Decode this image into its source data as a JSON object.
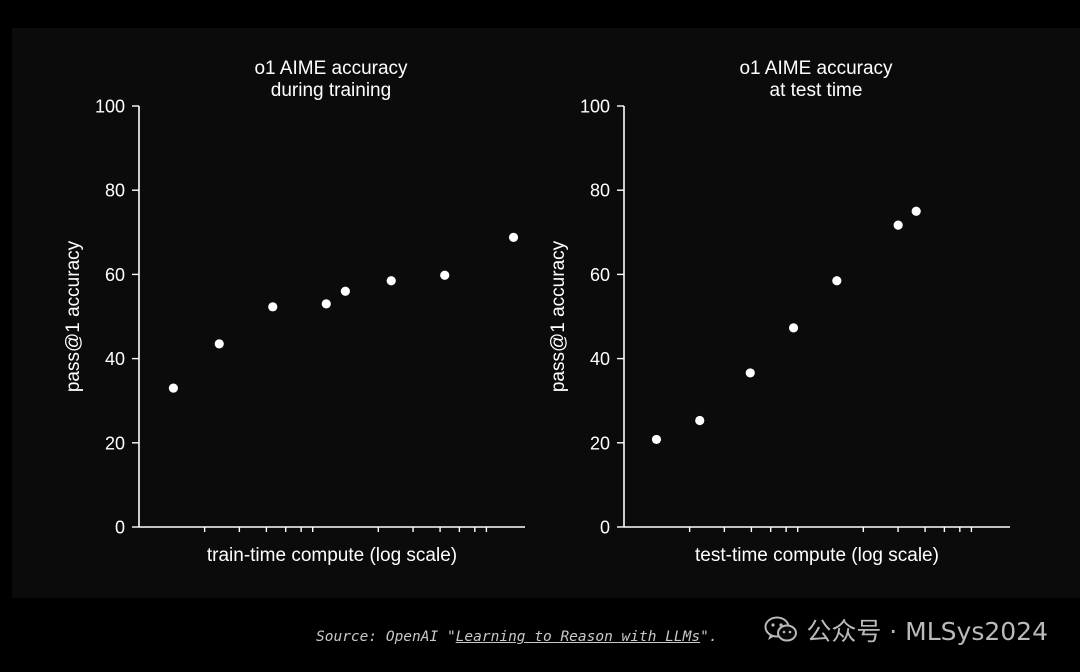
{
  "chart_data": [
    {
      "type": "scatter",
      "title_lines": [
        "o1 AIME accuracy",
        "during training"
      ],
      "xlabel": "train-time compute (log scale)",
      "ylabel": "pass@1 accuracy",
      "x_scale": "log",
      "x_tick_labels": false,
      "ylim": [
        0,
        100
      ],
      "yticks": [
        0,
        20,
        40,
        60,
        80,
        100
      ],
      "grid": false,
      "legend": "none",
      "points": [
        {
          "x": 1.0,
          "y": 33
        },
        {
          "x": 1.6,
          "y": 43.5
        },
        {
          "x": 2.3,
          "y": 52.3
        },
        {
          "x": 3.0,
          "y": 53
        },
        {
          "x": 3.25,
          "y": 56
        },
        {
          "x": 3.85,
          "y": 58.5
        },
        {
          "x": 4.55,
          "y": 59.8
        },
        {
          "x": 5.45,
          "y": 68.8
        }
      ]
    },
    {
      "type": "scatter",
      "title_lines": [
        "o1 AIME accuracy",
        "at test time"
      ],
      "xlabel": "test-time compute (log scale)",
      "ylabel": "pass@1 accuracy",
      "x_scale": "log",
      "x_tick_labels": false,
      "ylim": [
        0,
        100
      ],
      "yticks": [
        0,
        20,
        40,
        60,
        80,
        100
      ],
      "grid": false,
      "legend": "none",
      "points": [
        {
          "x": 1.0,
          "y": 20.8
        },
        {
          "x": 1.6,
          "y": 25.3
        },
        {
          "x": 2.3,
          "y": 36.6
        },
        {
          "x": 2.9,
          "y": 47.3
        },
        {
          "x": 3.5,
          "y": 58.5
        },
        {
          "x": 4.35,
          "y": 71.7
        },
        {
          "x": 4.6,
          "y": 75
        }
      ]
    }
  ],
  "source": {
    "prefix": "Source: OpenAI \"",
    "link_text": "Learning to Reason with LLMs",
    "suffix": "\"."
  },
  "watermark": {
    "text": "公众号 · MLSys2024",
    "icon": "wechat-icon"
  },
  "colors": {
    "background": "#000000",
    "panel": "#0b0b0b",
    "foreground": "#ffffff"
  }
}
